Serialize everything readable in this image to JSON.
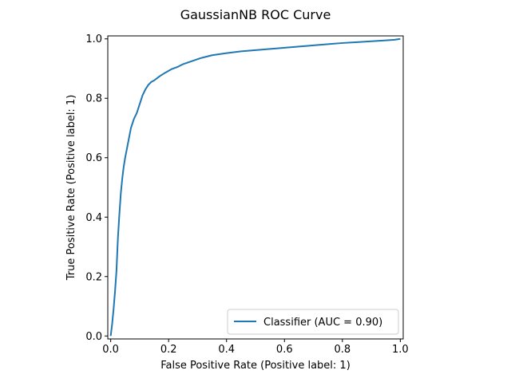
{
  "chart_data": {
    "type": "line",
    "title": "GaussianNB ROC Curve",
    "xlabel": "False Positive Rate (Positive label: 1)",
    "ylabel": "True Positive Rate (Positive label: 1)",
    "xlim": [
      -0.01,
      1.01
    ],
    "ylim": [
      -0.01,
      1.01
    ],
    "x_ticks": [
      0.0,
      0.2,
      0.4,
      0.6,
      0.8,
      1.0
    ],
    "x_tick_labels": [
      "0.0",
      "0.2",
      "0.4",
      "0.6",
      "0.8",
      "1.0"
    ],
    "y_ticks": [
      0.0,
      0.2,
      0.4,
      0.6,
      0.8,
      1.0
    ],
    "y_tick_labels": [
      "0.0",
      "0.2",
      "0.4",
      "0.6",
      "0.8",
      "1.0"
    ],
    "grid": false,
    "legend_position": "lower-right",
    "series": [
      {
        "name": "Classifier (AUC = 0.90)",
        "color": "#1f77b4",
        "x": [
          0.0,
          0.005,
          0.01,
          0.015,
          0.02,
          0.025,
          0.03,
          0.035,
          0.04,
          0.045,
          0.05,
          0.06,
          0.07,
          0.08,
          0.09,
          0.1,
          0.11,
          0.12,
          0.13,
          0.14,
          0.15,
          0.17,
          0.19,
          0.21,
          0.23,
          0.25,
          0.28,
          0.31,
          0.35,
          0.4,
          0.45,
          0.5,
          0.55,
          0.6,
          0.65,
          0.7,
          0.75,
          0.8,
          0.85,
          0.9,
          0.95,
          0.98,
          1.0
        ],
        "y": [
          0.0,
          0.04,
          0.09,
          0.15,
          0.22,
          0.33,
          0.41,
          0.48,
          0.53,
          0.57,
          0.6,
          0.65,
          0.7,
          0.73,
          0.75,
          0.78,
          0.81,
          0.83,
          0.845,
          0.855,
          0.86,
          0.875,
          0.887,
          0.898,
          0.905,
          0.915,
          0.925,
          0.935,
          0.945,
          0.952,
          0.958,
          0.962,
          0.966,
          0.97,
          0.974,
          0.978,
          0.982,
          0.986,
          0.989,
          0.992,
          0.995,
          0.997,
          1.0
        ]
      }
    ]
  }
}
